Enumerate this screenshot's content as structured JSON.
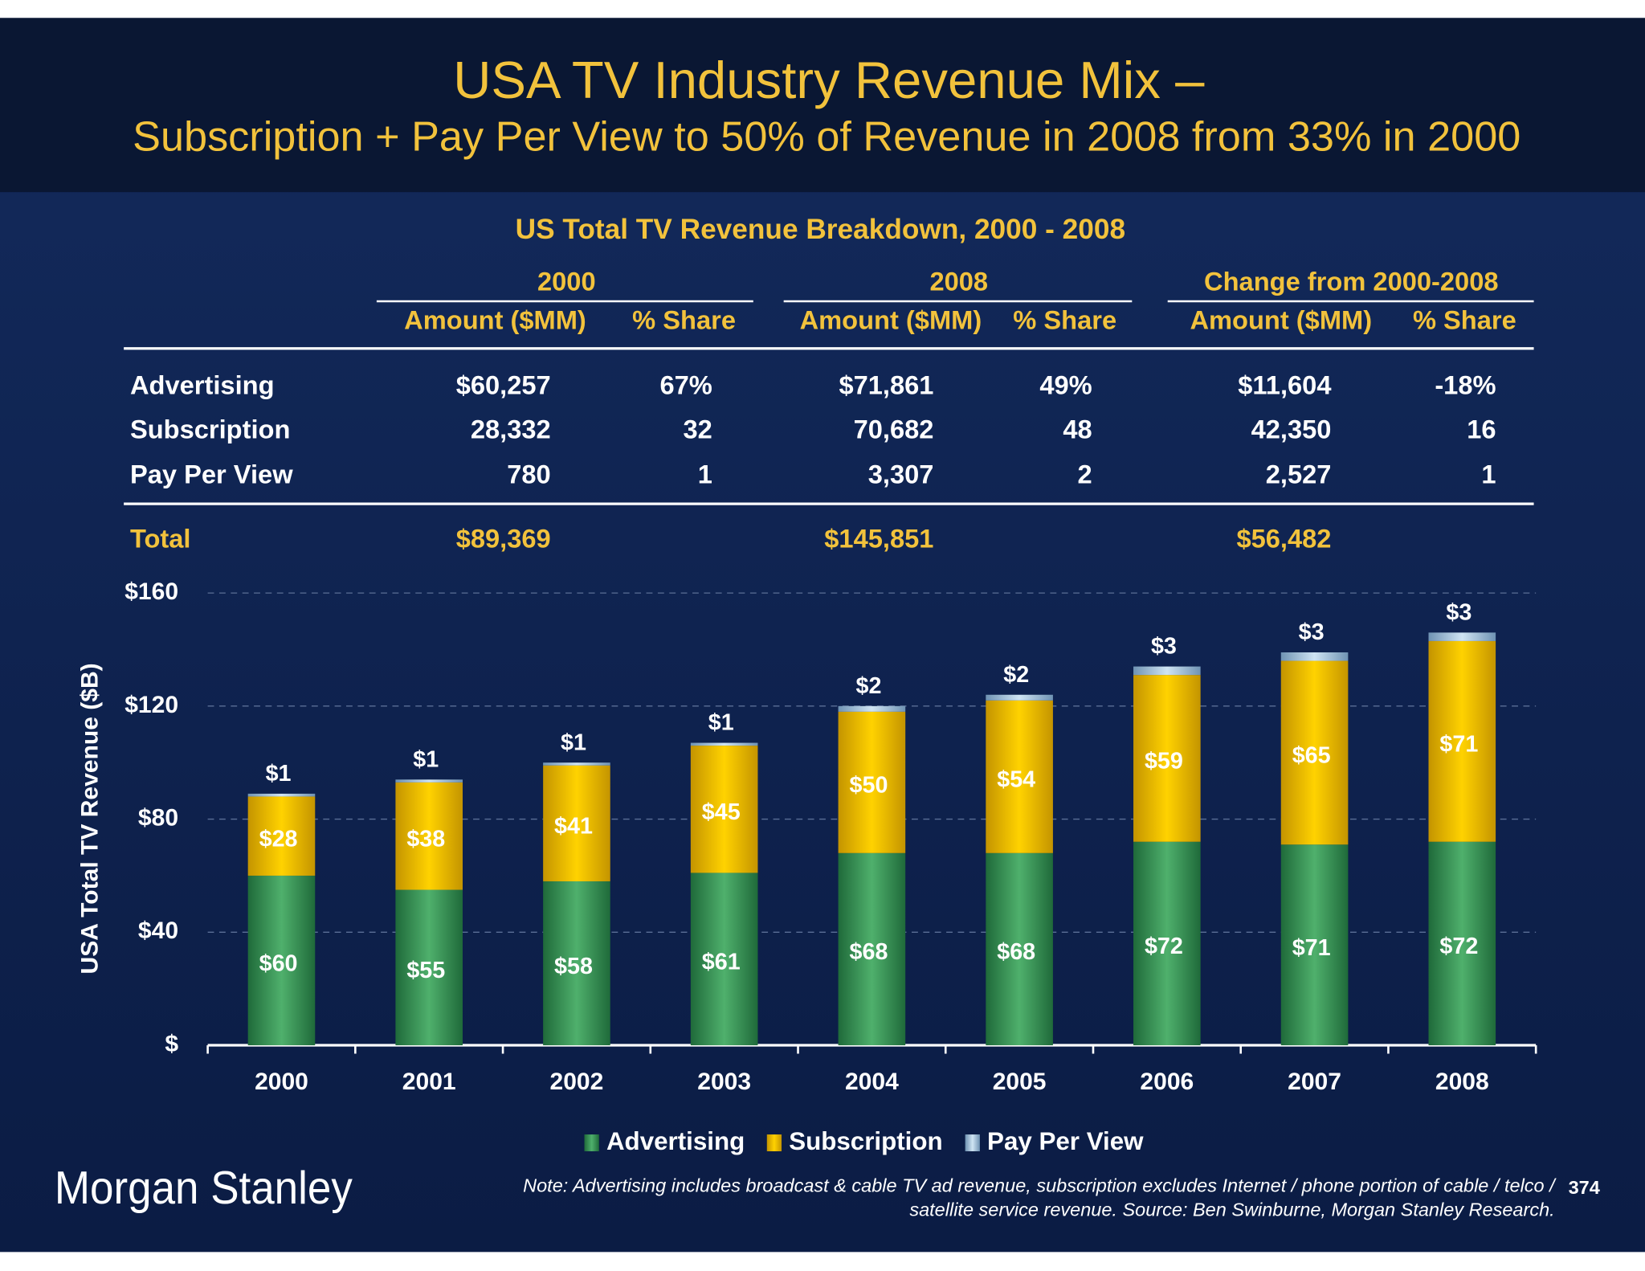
{
  "header": {
    "title": "USA TV Industry Revenue Mix –",
    "subtitle": "Subscription + Pay Per View to 50% of Revenue in 2008 from 33% in 2000"
  },
  "table": {
    "title": "US Total TV Revenue Breakdown, 2000 - 2008",
    "groups": [
      "2000",
      "2008",
      "Change from 2000-2008"
    ],
    "columns": [
      "Amount ($MM)",
      "% Share",
      "Amount ($MM)",
      "% Share",
      "Amount ($MM)",
      "% Share"
    ],
    "rows": [
      [
        "Advertising",
        "$60,257",
        "67%",
        "$71,861",
        "49%",
        "$11,604",
        "-18%"
      ],
      [
        "Subscription",
        "28,332",
        "32",
        "70,682",
        "48",
        "42,350",
        "16"
      ],
      [
        "Pay Per View",
        "780",
        "1",
        "3,307",
        "2",
        "2,527",
        "1"
      ]
    ],
    "total": [
      "Total",
      "$89,369",
      "$145,851",
      "$56,482"
    ]
  },
  "chart_data": {
    "type": "bar",
    "stacked": true,
    "ylabel": "USA Total TV Revenue ($B)",
    "categories": [
      "2000",
      "2001",
      "2002",
      "2003",
      "2004",
      "2005",
      "2006",
      "2007",
      "2008"
    ],
    "series": [
      {
        "name": "Advertising",
        "color": "#3f9d5c",
        "values": [
          60,
          55,
          58,
          61,
          68,
          68,
          72,
          71,
          72
        ],
        "value_labels": [
          "$60",
          "$55",
          "$58",
          "$61",
          "$68",
          "$68",
          "$72",
          "$71",
          "$72"
        ]
      },
      {
        "name": "Subscription",
        "color": "#f5c300",
        "values": [
          28,
          38,
          41,
          45,
          50,
          54,
          59,
          65,
          71
        ],
        "value_labels": [
          "$28",
          "$38",
          "$41",
          "$45",
          "$50",
          "$54",
          "$59",
          "$65",
          "$71"
        ]
      },
      {
        "name": "Pay Per View",
        "color": "#a8c8de",
        "values": [
          1,
          1,
          1,
          1,
          2,
          2,
          3,
          3,
          3
        ],
        "value_labels": [
          "$1",
          "$1",
          "$1",
          "$1",
          "$2",
          "$2",
          "$3",
          "$3",
          "$3"
        ]
      }
    ],
    "ylim": [
      0,
      160
    ],
    "yticks": [
      {
        "value": 0,
        "label": "$"
      },
      {
        "value": 40,
        "label": "$40"
      },
      {
        "value": 80,
        "label": "$80"
      },
      {
        "value": 120,
        "label": "$120"
      },
      {
        "value": 160,
        "label": "$160"
      }
    ],
    "grid": true,
    "legend": "bottom"
  },
  "footer": {
    "note_lines": [
      "Note: Advertising includes broadcast & cable TV ad revenue, subscription excludes Internet / phone portion of cable / telco /",
      "satellite service revenue. Source: Ben Swinburne, Morgan Stanley Research."
    ],
    "logo": "Morgan Stanley",
    "page_number": "374"
  }
}
